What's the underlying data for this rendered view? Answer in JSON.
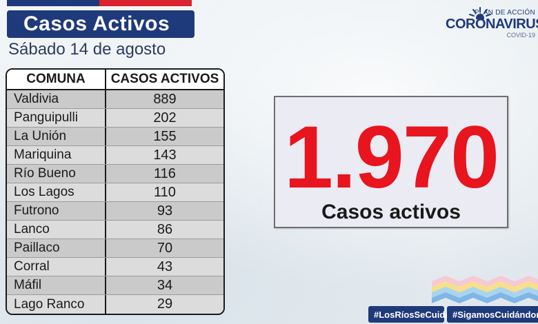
{
  "title": "Casos Activos",
  "subtitle": "Sábado 14 de agosto",
  "table": {
    "headers": [
      "COMUNA",
      "CASOS ACTIVOS"
    ],
    "rows": [
      {
        "comuna": "Valdivia",
        "casos": "889"
      },
      {
        "comuna": "Panguipulli",
        "casos": "202"
      },
      {
        "comuna": "La Unión",
        "casos": "155"
      },
      {
        "comuna": "Mariquina",
        "casos": "143"
      },
      {
        "comuna": "Río Bueno",
        "casos": "116"
      },
      {
        "comuna": "Los Lagos",
        "casos": "110"
      },
      {
        "comuna": "Futrono",
        "casos": "93"
      },
      {
        "comuna": "Lanco",
        "casos": "86"
      },
      {
        "comuna": "Paillaco",
        "casos": "70"
      },
      {
        "comuna": "Corral",
        "casos": "43"
      },
      {
        "comuna": "Máfil",
        "casos": "34"
      },
      {
        "comuna": "Lago Ranco",
        "casos": "29"
      }
    ]
  },
  "total": {
    "value": "1.970",
    "label": "Casos activos"
  },
  "logo": {
    "plan": "PLAN DE ACCIÓN",
    "name": "CORONAVIRUS",
    "sub": "COVID-19"
  },
  "hashtags": [
    "#LosRíosSeCuida",
    "#SigamosCuidándonos"
  ],
  "colors": {
    "navy": "#1f3a7a",
    "red": "#d9232e",
    "total_red": "#e8141e"
  },
  "icons": {
    "logo": "sun-rays-icon",
    "waves": "wave-stripes-icon"
  }
}
